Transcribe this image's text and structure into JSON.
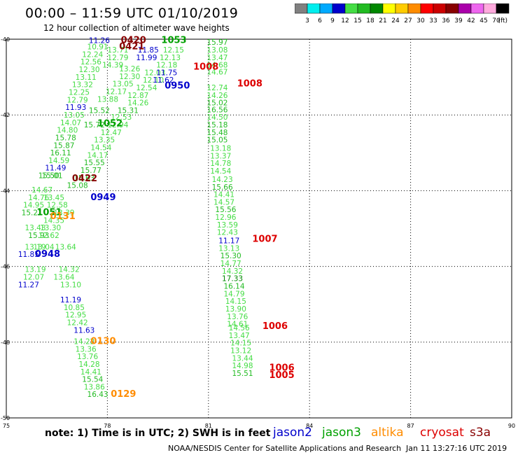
{
  "title": "00:00 – 11:59 UTC 01/10/2019",
  "subtitle": "12 hour collection of altimeter wave heights",
  "note": "note:  1) Time is in UTC;  2) SWH is in feet",
  "credit": "NOAA/NESDIS Center for Satellite Applications and Research",
  "timestamp": "Jan 11 13:27:16 UTC 2019",
  "satellites": [
    {
      "name": "jason2",
      "color": "#0000cc"
    },
    {
      "name": "jason3",
      "color": "#00a000"
    },
    {
      "name": "altika",
      "color": "#ff8c00"
    },
    {
      "name": "cryosat",
      "color": "#dd0000"
    },
    {
      "name": "s3a",
      "color": "#880000"
    }
  ],
  "colorbar": {
    "labels": [
      "3",
      "6",
      "9",
      "12",
      "15",
      "18",
      "21",
      "24",
      "27",
      "30",
      "33",
      "36",
      "39",
      "42",
      "45",
      "70"
    ],
    "unit": "(ft)",
    "colors": [
      "#808080",
      "#00eeee",
      "#00aaff",
      "#0000cc",
      "#44dd44",
      "#22bb22",
      "#008800",
      "#ffff00",
      "#ffcc00",
      "#ff8c00",
      "#ff0000",
      "#cc0000",
      "#880000",
      "#aa00aa",
      "#ee66ee",
      "#ffaadd",
      "#000000"
    ]
  },
  "chart_data": {
    "type": "scatter",
    "xlim": [
      75,
      90
    ],
    "ylim": [
      -50,
      -40
    ],
    "xticks": [
      75,
      78,
      81,
      84,
      87,
      90
    ],
    "yticks": [
      -40,
      -42,
      -44,
      -46,
      -48,
      -50
    ],
    "grid": true,
    "swh_colors": {
      "11": "#0000cc",
      "12": "#44dd44",
      "13": "#44dd44",
      "14": "#44dd44",
      "15": "#22bb22",
      "16": "#22bb22",
      "17": "#008800"
    },
    "points": [
      {
        "lon": 80.95,
        "lat": -40.15,
        "swh": "15.97"
      },
      {
        "lon": 80.95,
        "lat": -40.35,
        "swh": "13.08"
      },
      {
        "lon": 80.95,
        "lat": -40.55,
        "swh": "13.47"
      },
      {
        "lon": 80.95,
        "lat": -40.75,
        "swh": "14.68"
      },
      {
        "lon": 80.95,
        "lat": -40.93,
        "swh": "14.67"
      },
      {
        "lon": 80.95,
        "lat": -41.35,
        "swh": "12.74"
      },
      {
        "lon": 80.95,
        "lat": -41.55,
        "swh": "14.26"
      },
      {
        "lon": 80.95,
        "lat": -41.75,
        "swh": "15.02"
      },
      {
        "lon": 80.95,
        "lat": -41.93,
        "swh": "16.56"
      },
      {
        "lon": 80.95,
        "lat": -42.13,
        "swh": "14.50"
      },
      {
        "lon": 80.95,
        "lat": -42.33,
        "swh": "15.18"
      },
      {
        "lon": 80.95,
        "lat": -42.53,
        "swh": "15.48"
      },
      {
        "lon": 80.95,
        "lat": -42.73,
        "swh": "15.05"
      },
      {
        "lon": 81.05,
        "lat": -42.95,
        "swh": "13.18"
      },
      {
        "lon": 81.05,
        "lat": -43.15,
        "swh": "13.37"
      },
      {
        "lon": 81.05,
        "lat": -43.35,
        "swh": "14.78"
      },
      {
        "lon": 81.05,
        "lat": -43.55,
        "swh": "14.54"
      },
      {
        "lon": 81.1,
        "lat": -43.77,
        "swh": "14.23"
      },
      {
        "lon": 81.1,
        "lat": -43.97,
        "swh": "15.66"
      },
      {
        "lon": 81.15,
        "lat": -44.17,
        "swh": "14.41"
      },
      {
        "lon": 81.15,
        "lat": -44.37,
        "swh": "14.57"
      },
      {
        "lon": 81.2,
        "lat": -44.57,
        "swh": "15.56"
      },
      {
        "lon": 81.2,
        "lat": -44.77,
        "swh": "12.96"
      },
      {
        "lon": 81.25,
        "lat": -44.97,
        "swh": "13.59"
      },
      {
        "lon": 81.25,
        "lat": -45.17,
        "swh": "12.43"
      },
      {
        "lon": 81.3,
        "lat": -45.39,
        "swh": "11.17"
      },
      {
        "lon": 81.3,
        "lat": -45.59,
        "swh": "13.13"
      },
      {
        "lon": 81.35,
        "lat": -45.79,
        "swh": "15.30"
      },
      {
        "lon": 81.35,
        "lat": -45.99,
        "swh": "14.77"
      },
      {
        "lon": 81.4,
        "lat": -46.19,
        "swh": "14.32"
      },
      {
        "lon": 81.4,
        "lat": -46.39,
        "swh": "17.33"
      },
      {
        "lon": 81.45,
        "lat": -46.59,
        "swh": "16.14"
      },
      {
        "lon": 81.45,
        "lat": -46.79,
        "swh": "14.79"
      },
      {
        "lon": 81.5,
        "lat": -46.99,
        "swh": "14.15"
      },
      {
        "lon": 81.5,
        "lat": -47.19,
        "swh": "13.90"
      },
      {
        "lon": 81.55,
        "lat": -47.39,
        "swh": "13.76"
      },
      {
        "lon": 81.55,
        "lat": -47.59,
        "swh": "14.61"
      },
      {
        "lon": 81.6,
        "lat": -47.69,
        "swh": "14.56"
      },
      {
        "lon": 81.6,
        "lat": -47.89,
        "swh": "13.47"
      },
      {
        "lon": 81.65,
        "lat": -48.09,
        "swh": "14.15"
      },
      {
        "lon": 81.65,
        "lat": -48.29,
        "swh": "13.12"
      },
      {
        "lon": 81.7,
        "lat": -48.49,
        "swh": "13.44"
      },
      {
        "lon": 81.7,
        "lat": -48.69,
        "swh": "14.98"
      },
      {
        "lon": 81.7,
        "lat": -48.89,
        "swh": "15.51"
      },
      {
        "lon": 77.45,
        "lat": -40.1,
        "swh": "11.26"
      },
      {
        "lon": 77.4,
        "lat": -40.27,
        "swh": "10.91"
      },
      {
        "lon": 77.25,
        "lat": -40.47,
        "swh": "12.24"
      },
      {
        "lon": 77.2,
        "lat": -40.67,
        "swh": "12.56"
      },
      {
        "lon": 77.15,
        "lat": -40.87,
        "swh": "12.30"
      },
      {
        "lon": 77.05,
        "lat": -41.07,
        "swh": "13.11"
      },
      {
        "lon": 76.95,
        "lat": -41.27,
        "swh": "13.32"
      },
      {
        "lon": 76.85,
        "lat": -41.47,
        "swh": "12.25"
      },
      {
        "lon": 76.8,
        "lat": -41.67,
        "swh": "12.79"
      },
      {
        "lon": 76.75,
        "lat": -41.87,
        "swh": "11.93"
      },
      {
        "lon": 76.7,
        "lat": -42.07,
        "swh": "13.05"
      },
      {
        "lon": 76.6,
        "lat": -42.27,
        "swh": "14.07"
      },
      {
        "lon": 76.5,
        "lat": -42.47,
        "swh": "14.80"
      },
      {
        "lon": 76.45,
        "lat": -42.67,
        "swh": "15.78"
      },
      {
        "lon": 76.4,
        "lat": -42.87,
        "swh": "15.87"
      },
      {
        "lon": 76.3,
        "lat": -43.07,
        "swh": "16.11"
      },
      {
        "lon": 76.25,
        "lat": -43.27,
        "swh": "14.59"
      },
      {
        "lon": 76.15,
        "lat": -43.47,
        "swh": "11.49"
      },
      {
        "lon": 76.05,
        "lat": -43.67,
        "swh": "15.01"
      },
      {
        "lon": 75.95,
        "lat": -43.67,
        "swh": "15.50"
      },
      {
        "lon": 75.75,
        "lat": -44.05,
        "swh": "14.67"
      },
      {
        "lon": 75.65,
        "lat": -44.25,
        "swh": "14.76"
      },
      {
        "lon": 75.5,
        "lat": -44.45,
        "swh": "14.95"
      },
      {
        "lon": 75.45,
        "lat": -44.65,
        "swh": "15.21"
      },
      {
        "lon": 75.55,
        "lat": -45.05,
        "swh": "13.43"
      },
      {
        "lon": 75.65,
        "lat": -45.25,
        "swh": "15.93"
      },
      {
        "lon": 75.55,
        "lat": -45.55,
        "swh": "13.19"
      },
      {
        "lon": 75.35,
        "lat": -45.75,
        "swh": "11.85"
      },
      {
        "lon": 75.55,
        "lat": -46.15,
        "swh": "13.19"
      },
      {
        "lon": 75.5,
        "lat": -46.35,
        "swh": "12.07"
      },
      {
        "lon": 75.35,
        "lat": -46.55,
        "swh": "11.27"
      },
      {
        "lon": 76.45,
        "lat": -45.55,
        "swh": "13.64"
      },
      {
        "lon": 76.55,
        "lat": -46.15,
        "swh": "14.32"
      },
      {
        "lon": 76.4,
        "lat": -46.35,
        "swh": "13.64"
      },
      {
        "lon": 76.6,
        "lat": -46.55,
        "swh": "13.10"
      },
      {
        "lon": 76.6,
        "lat": -46.95,
        "swh": "11.19"
      },
      {
        "lon": 76.7,
        "lat": -47.15,
        "swh": "10.85"
      },
      {
        "lon": 76.75,
        "lat": -47.35,
        "swh": "12.95"
      },
      {
        "lon": 76.8,
        "lat": -47.55,
        "swh": "12.42"
      },
      {
        "lon": 77.0,
        "lat": -47.75,
        "swh": "11.63"
      },
      {
        "lon": 77.0,
        "lat": -48.05,
        "swh": "14.22"
      },
      {
        "lon": 77.05,
        "lat": -48.25,
        "swh": "13.36"
      },
      {
        "lon": 77.1,
        "lat": -48.45,
        "swh": "13.76"
      },
      {
        "lon": 77.15,
        "lat": -48.65,
        "swh": "14.28"
      },
      {
        "lon": 77.2,
        "lat": -48.85,
        "swh": "14.41"
      },
      {
        "lon": 77.25,
        "lat": -49.05,
        "swh": "15.54"
      },
      {
        "lon": 77.3,
        "lat": -49.25,
        "swh": "13.86"
      },
      {
        "lon": 77.4,
        "lat": -49.45,
        "swh": "16.43"
      },
      {
        "lon": 78.0,
        "lat": -40.35,
        "swh": "13.71"
      },
      {
        "lon": 78.0,
        "lat": -40.55,
        "swh": "12.79"
      },
      {
        "lon": 77.85,
        "lat": -40.75,
        "swh": "14.39"
      },
      {
        "lon": 78.35,
        "lat": -40.85,
        "swh": "13.26"
      },
      {
        "lon": 78.35,
        "lat": -41.05,
        "swh": "12.30"
      },
      {
        "lon": 78.15,
        "lat": -41.25,
        "swh": "13.05"
      },
      {
        "lon": 77.95,
        "lat": -41.45,
        "swh": "12.17"
      },
      {
        "lon": 77.7,
        "lat": -41.65,
        "swh": "13.88"
      },
      {
        "lon": 78.9,
        "lat": -40.35,
        "swh": "11.85"
      },
      {
        "lon": 78.85,
        "lat": -40.55,
        "swh": "11.99"
      },
      {
        "lon": 79.1,
        "lat": -40.95,
        "swh": "12.03"
      },
      {
        "lon": 79.05,
        "lat": -41.15,
        "swh": "12.10"
      },
      {
        "lon": 78.85,
        "lat": -41.35,
        "swh": "12.54"
      },
      {
        "lon": 78.6,
        "lat": -41.55,
        "swh": "12.87"
      },
      {
        "lon": 78.6,
        "lat": -41.75,
        "swh": "14.26"
      },
      {
        "lon": 78.3,
        "lat": -41.95,
        "swh": "15.31"
      },
      {
        "lon": 78.1,
        "lat": -42.13,
        "swh": "12.53"
      },
      {
        "lon": 78.0,
        "lat": -42.33,
        "swh": "12.94"
      },
      {
        "lon": 77.8,
        "lat": -42.53,
        "swh": "12.47"
      },
      {
        "lon": 77.6,
        "lat": -42.73,
        "swh": "13.35"
      },
      {
        "lon": 77.5,
        "lat": -42.93,
        "swh": "14.54"
      },
      {
        "lon": 77.4,
        "lat": -43.13,
        "swh": "14.17"
      },
      {
        "lon": 77.3,
        "lat": -43.33,
        "swh": "15.55"
      },
      {
        "lon": 77.2,
        "lat": -43.53,
        "swh": "15.77"
      },
      {
        "lon": 77.0,
        "lat": -43.73,
        "swh": "15.63"
      },
      {
        "lon": 76.8,
        "lat": -43.93,
        "swh": "15.08"
      },
      {
        "lon": 79.65,
        "lat": -40.35,
        "swh": "12.15"
      },
      {
        "lon": 79.55,
        "lat": -40.55,
        "swh": "12.13"
      },
      {
        "lon": 79.45,
        "lat": -40.75,
        "swh": "12.18"
      },
      {
        "lon": 79.45,
        "lat": -40.95,
        "swh": "11.75"
      },
      {
        "lon": 79.35,
        "lat": -41.15,
        "swh": "11.62"
      },
      {
        "lon": 77.3,
        "lat": -42.33,
        "swh": "15.72"
      },
      {
        "lon": 77.45,
        "lat": -41.95,
        "swh": "15.52"
      },
      {
        "lon": 76.1,
        "lat": -44.25,
        "swh": "13.45"
      },
      {
        "lon": 76.2,
        "lat": -44.45,
        "swh": "12.58"
      },
      {
        "lon": 76.4,
        "lat": -44.65,
        "swh": "13.39"
      },
      {
        "lon": 76.1,
        "lat": -44.85,
        "swh": "14.35"
      },
      {
        "lon": 76.0,
        "lat": -45.05,
        "swh": "13.30"
      },
      {
        "lon": 75.95,
        "lat": -45.25,
        "swh": "12.62"
      },
      {
        "lon": 75.8,
        "lat": -45.55,
        "swh": "13.04"
      }
    ],
    "time_labels": [
      {
        "lon": 80.55,
        "lat": -40.8,
        "text": "1008",
        "sat": "cryosat"
      },
      {
        "lon": 81.85,
        "lat": -41.25,
        "text": "1008",
        "sat": "cryosat"
      },
      {
        "lon": 82.3,
        "lat": -45.35,
        "text": "1007",
        "sat": "cryosat"
      },
      {
        "lon": 82.6,
        "lat": -47.65,
        "text": "1006",
        "sat": "cryosat"
      },
      {
        "lon": 82.8,
        "lat": -48.75,
        "text": "1006",
        "sat": "cryosat"
      },
      {
        "lon": 82.8,
        "lat": -48.95,
        "text": "1005",
        "sat": "cryosat"
      },
      {
        "lon": 78.4,
        "lat": -40.1,
        "text": "0420",
        "sat": "s3a"
      },
      {
        "lon": 78.35,
        "lat": -40.27,
        "text": "0421",
        "sat": "s3a"
      },
      {
        "lon": 76.95,
        "lat": -43.75,
        "text": "0422",
        "sat": "s3a"
      },
      {
        "lon": 79.6,
        "lat": -40.1,
        "text": "1053",
        "sat": "jason3"
      },
      {
        "lon": 77.7,
        "lat": -42.3,
        "text": "1052",
        "sat": "jason3"
      },
      {
        "lon": 75.9,
        "lat": -44.65,
        "text": "1051",
        "sat": "jason3"
      },
      {
        "lon": 79.7,
        "lat": -41.3,
        "text": "0950",
        "sat": "jason2"
      },
      {
        "lon": 77.5,
        "lat": -44.25,
        "text": "0949",
        "sat": "jason2"
      },
      {
        "lon": 75.85,
        "lat": -45.75,
        "text": "0948",
        "sat": "jason2"
      },
      {
        "lon": 77.5,
        "lat": -48.05,
        "text": "0130",
        "sat": "altika"
      },
      {
        "lon": 78.1,
        "lat": -49.45,
        "text": "0129",
        "sat": "altika"
      },
      {
        "lon": 76.3,
        "lat": -44.75,
        "text": "0131",
        "sat": "altika"
      }
    ]
  }
}
